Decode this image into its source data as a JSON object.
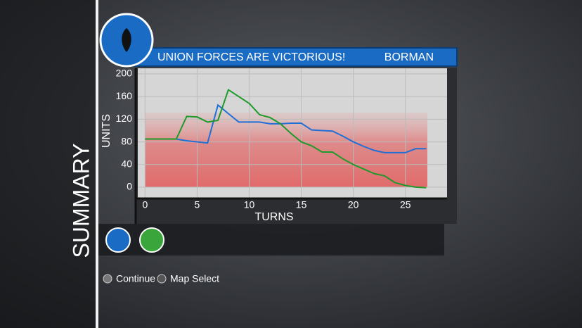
{
  "ui": {
    "side_title": "SUMMARY",
    "banner": "UNION FORCES ARE VICTORIOUS!",
    "player": "BORMAN",
    "buttons": [
      "Continue",
      "Map Select"
    ]
  },
  "chart_data": {
    "type": "line",
    "xlabel": "TURNS",
    "ylabel": "UNITS",
    "x": [
      0,
      1,
      2,
      3,
      4,
      5,
      6,
      7,
      8,
      9,
      10,
      11,
      12,
      13,
      14,
      15,
      16,
      17,
      18,
      19,
      20,
      21,
      22,
      23,
      24,
      25,
      26,
      27
    ],
    "series": [
      {
        "color": "#1f6fd6",
        "values": [
          85,
          85,
          85,
          85,
          82,
          80,
          78,
          145,
          130,
          115,
          115,
          115,
          112,
          112,
          113,
          113,
          101,
          100,
          99,
          90,
          80,
          72,
          65,
          61,
          61,
          61,
          68,
          68
        ]
      },
      {
        "color": "#1e9a2a",
        "values": [
          85,
          85,
          85,
          85,
          125,
          124,
          115,
          118,
          172,
          160,
          148,
          128,
          123,
          112,
          95,
          80,
          73,
          62,
          62,
          50,
          40,
          32,
          24,
          20,
          8,
          3,
          0,
          -1
        ]
      }
    ],
    "xlim": [
      -0.7,
      29
    ],
    "ylim": [
      -20,
      210
    ],
    "xticks": [
      0,
      5,
      10,
      15,
      20,
      25
    ],
    "yticks": [
      0,
      40,
      80,
      120,
      160,
      200
    ]
  }
}
